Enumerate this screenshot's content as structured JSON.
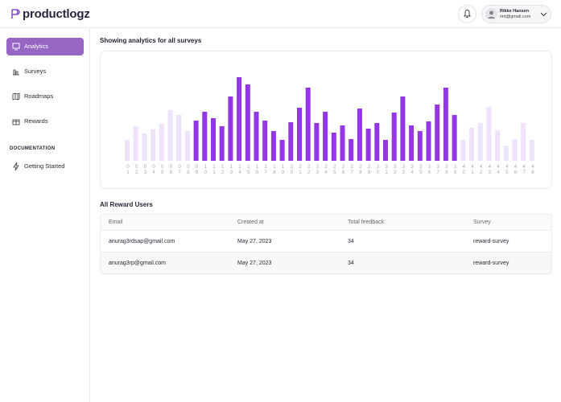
{
  "header": {
    "logo": "productlogz",
    "user": {
      "name": "Rikke Hansen",
      "email": "rint@gmail.com"
    }
  },
  "sidebar": {
    "nav": [
      "Analytics",
      "Surveys",
      "Roadmaps",
      "Rewards"
    ],
    "section": "DOCUMENTATION",
    "links": [
      "Getting Started"
    ]
  },
  "main": {
    "title": "Showing analytics for all surveys"
  },
  "chart_data": {
    "type": "bar",
    "categories": [
      "01",
      "02",
      "03",
      "04",
      "05",
      "06",
      "07",
      "08",
      "09",
      "10",
      "11",
      "12",
      "13",
      "14",
      "15",
      "16",
      "17",
      "18",
      "19",
      "20",
      "21",
      "22",
      "23",
      "24",
      "25",
      "26",
      "27",
      "28",
      "29",
      "30",
      "31",
      "32",
      "33",
      "34",
      "35",
      "36",
      "37",
      "38",
      "39",
      "40",
      "41",
      "42",
      "43",
      "44",
      "45",
      "46",
      "47",
      "48"
    ],
    "values": [
      26,
      43,
      34,
      39,
      46,
      63,
      57,
      37,
      50,
      61,
      53,
      43,
      80,
      104,
      95,
      61,
      50,
      37,
      26,
      48,
      66,
      91,
      47,
      61,
      35,
      44,
      27,
      65,
      40,
      47,
      26,
      60,
      80,
      44,
      37,
      49,
      70,
      91,
      57,
      26,
      41,
      47,
      67,
      38,
      19,
      27,
      47,
      26
    ],
    "colors": [
      "#efe2fb",
      "#efe2fb",
      "#efe2fb",
      "#efe2fb",
      "#efe2fb",
      "#efe2fb",
      "#efe2fb",
      "#efe2fb",
      "#9337e6",
      "#9337e6",
      "#9337e6",
      "#9337e6",
      "#9337e6",
      "#9337e6",
      "#9337e6",
      "#9337e6",
      "#9337e6",
      "#9337e6",
      "#9337e6",
      "#9337e6",
      "#9337e6",
      "#9337e6",
      "#9337e6",
      "#9337e6",
      "#9337e6",
      "#9337e6",
      "#9337e6",
      "#9337e6",
      "#9337e6",
      "#9337e6",
      "#9337e6",
      "#9337e6",
      "#9337e6",
      "#9337e6",
      "#9337e6",
      "#9337e6",
      "#9337e6",
      "#9337e6",
      "#9337e6",
      "#efe2fb",
      "#efe2fb",
      "#efe2fb",
      "#efe2fb",
      "#efe2fb",
      "#efe2fb",
      "#efe2fb",
      "#efe2fb",
      "#efe2fb"
    ]
  },
  "table": {
    "title": "All Reward Users",
    "columns": [
      "Email",
      "Created at",
      "Total feedback",
      "Survey"
    ],
    "rows": [
      [
        "anurag3rdsap@gmail.com",
        "May 27, 2023",
        "34",
        "reward-survey"
      ],
      [
        "anurag3rp@gmail.com",
        "May 27, 2023",
        "34",
        "reward-survey"
      ]
    ]
  }
}
